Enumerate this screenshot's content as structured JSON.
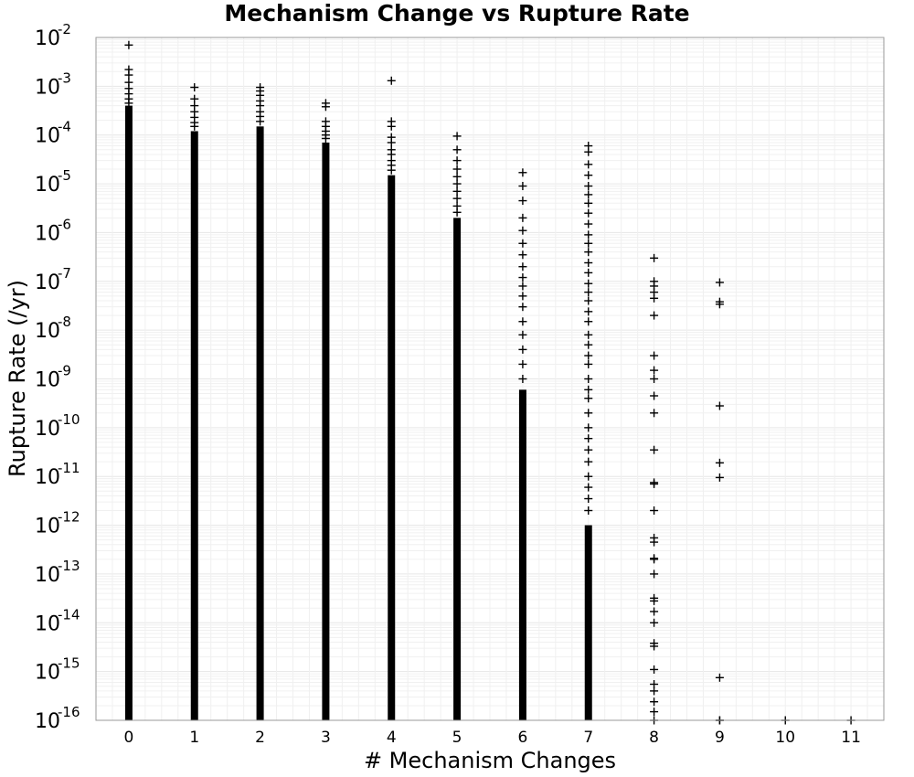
{
  "chart_data": {
    "type": "scatter",
    "title": "Mechanism Change vs Rupture Rate",
    "xlabel": "# Mechanism Changes",
    "ylabel": "Rupture Rate (/yr)",
    "xlim": [
      -0.5,
      11.5
    ],
    "ylim": [
      1e-16,
      0.01
    ],
    "y_scale": "log",
    "grid": true,
    "marker": "+",
    "x_ticks": [
      "0",
      "1",
      "2",
      "3",
      "4",
      "5",
      "6",
      "7",
      "8",
      "9",
      "10",
      "11"
    ],
    "y_tick_base": "10",
    "y_tick_exponents": [
      "-2",
      "-3",
      "-4",
      "-5",
      "-6",
      "-7",
      "-8",
      "-9",
      "-10",
      "-11",
      "-12",
      "-13",
      "-14",
      "-15",
      "-16"
    ],
    "columns": [
      {
        "x": 0,
        "dense_range": [
          1e-16,
          0.0004
        ],
        "points": [
          0.007,
          0.0022,
          0.0017,
          0.0012,
          0.0009,
          0.0007,
          0.00055,
          0.00045
        ]
      },
      {
        "x": 1,
        "dense_range": [
          1e-16,
          0.00012
        ],
        "points": [
          0.00095,
          0.00055,
          0.0004,
          0.0003,
          0.00023,
          0.00018,
          0.00015
        ]
      },
      {
        "x": 2,
        "dense_range": [
          1e-16,
          0.00015
        ],
        "points": [
          0.00095,
          0.0008,
          0.00065,
          0.0005,
          0.0004,
          0.0003,
          0.00024,
          0.00019
        ]
      },
      {
        "x": 3,
        "dense_range": [
          1e-16,
          7e-05
        ],
        "points": [
          0.00045,
          0.00038,
          0.00019,
          0.00015,
          0.00012,
          0.0001,
          8.5e-05
        ]
      },
      {
        "x": 4,
        "dense_range": [
          1e-16,
          1.5e-05
        ],
        "points": [
          0.0013,
          0.00019,
          0.00015,
          9e-05,
          7e-05,
          5e-05,
          4e-05,
          3e-05,
          2.4e-05,
          1.9e-05
        ]
      },
      {
        "x": 5,
        "dense_range": [
          1e-16,
          2e-06
        ],
        "points": [
          9.5e-05,
          5e-05,
          3e-05,
          2e-05,
          1.4e-05,
          1e-05,
          7e-06,
          5e-06,
          3.5e-06,
          2.6e-06
        ]
      },
      {
        "x": 6,
        "dense_range": [
          1e-16,
          6e-10
        ],
        "points": [
          1.7e-05,
          9e-06,
          4.5e-06,
          2e-06,
          1.1e-06,
          6e-07,
          3.5e-07,
          2e-07,
          1.2e-07,
          8e-08,
          5e-08,
          3e-08,
          1.5e-08,
          8e-09,
          4e-09,
          2e-09,
          1e-09
        ]
      },
      {
        "x": 7,
        "dense_range": [
          1e-16,
          1e-12
        ],
        "points": [
          6e-05,
          4.5e-05,
          2.5e-05,
          1.5e-05,
          9e-06,
          6e-06,
          4e-06,
          2.5e-06,
          1.5e-06,
          9e-07,
          6e-07,
          4e-07,
          2.4e-07,
          1.5e-07,
          9e-08,
          6e-08,
          4e-08,
          2.4e-08,
          1.5e-08,
          8e-09,
          5e-09,
          3e-09,
          2e-09,
          1e-09,
          6e-10,
          4e-10,
          2e-10,
          1e-10,
          6e-11,
          3.5e-11,
          2e-11,
          1e-11,
          6e-12,
          3.5e-12,
          2e-12
        ]
      },
      {
        "x": 8,
        "dense_range": null,
        "points": [
          3e-07,
          1e-07,
          8e-08,
          6e-08,
          4.5e-08,
          2e-08,
          3e-09,
          1.5e-09,
          1e-09,
          4.5e-10,
          2e-10,
          3.5e-11,
          7.5e-12,
          7e-12,
          2e-12,
          5.5e-13,
          4.5e-13,
          2.1e-13,
          2e-13,
          1e-13,
          3.2e-14,
          2.8e-14,
          1.7e-14,
          1e-14,
          3.8e-15,
          3.3e-15,
          1.1e-15,
          5.5e-16,
          4e-16,
          2.4e-16,
          1.5e-16,
          1e-16
        ]
      },
      {
        "x": 9,
        "dense_range": null,
        "points": [
          9.5e-08,
          3.8e-08,
          3.4e-08,
          2.8e-10,
          1.9e-11,
          9.5e-12,
          7.5e-16,
          1e-16,
          1e-16
        ]
      },
      {
        "x": 10,
        "dense_range": null,
        "points": [
          1e-16
        ]
      },
      {
        "x": 11,
        "dense_range": null,
        "points": [
          1e-16
        ]
      }
    ]
  }
}
